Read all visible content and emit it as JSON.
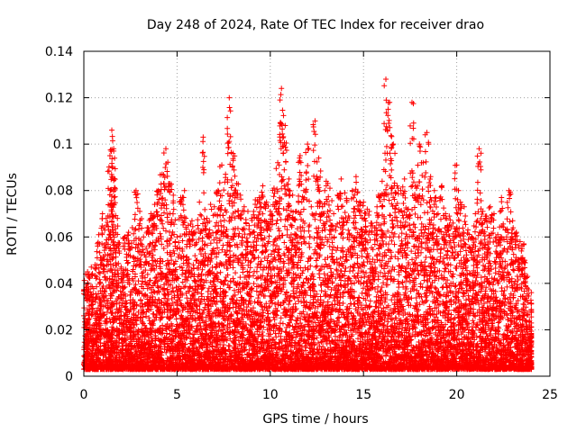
{
  "chart_data": {
    "type": "scatter",
    "title": "Day 248 of 2024, Rate Of TEC Index for receiver drao",
    "xlabel": "GPS time / hours",
    "ylabel": "ROTI / TECUs",
    "xlim": [
      0,
      25
    ],
    "ylim": [
      0,
      0.14
    ],
    "x_ticks": [
      0,
      5,
      10,
      15,
      20,
      25
    ],
    "x_tick_labels": [
      "0",
      "5",
      "10",
      "15",
      "20",
      "25"
    ],
    "y_ticks": [
      0,
      0.02,
      0.04,
      0.06,
      0.08,
      0.1,
      0.12,
      0.14
    ],
    "y_tick_labels": [
      "0",
      "0.02",
      "0.04",
      "0.06",
      "0.08",
      "0.1",
      "0.12",
      "0.14"
    ],
    "grid": true,
    "marker": "plus",
    "marker_color": "#ff0000",
    "series": [
      {
        "name": "ROTI",
        "x": [
          0.1,
          0.2,
          0.4,
          0.6,
          0.8,
          1.0,
          1.2,
          1.4,
          1.5,
          1.6,
          1.8,
          2.0,
          2.2,
          2.4,
          2.6,
          2.8,
          3.0,
          3.2,
          3.4,
          3.6,
          3.8,
          4.0,
          4.2,
          4.4,
          4.6,
          4.8,
          5.0,
          5.2,
          5.4,
          5.6,
          5.8,
          6.0,
          6.2,
          6.4,
          6.6,
          6.8,
          7.0,
          7.2,
          7.4,
          7.6,
          7.8,
          8.0,
          8.2,
          8.4,
          8.6,
          8.8,
          9.0,
          9.2,
          9.4,
          9.6,
          9.8,
          10.0,
          10.2,
          10.4,
          10.6,
          10.8,
          11.0,
          11.2,
          11.4,
          11.6,
          11.8,
          12.0,
          12.2,
          12.4,
          12.6,
          12.8,
          13.0,
          13.2,
          13.4,
          13.6,
          13.8,
          14.0,
          14.2,
          14.4,
          14.6,
          14.8,
          15.0,
          15.2,
          15.4,
          15.6,
          15.8,
          16.0,
          16.2,
          16.4,
          16.6,
          16.8,
          17.0,
          17.2,
          17.4,
          17.6,
          17.8,
          18.0,
          18.2,
          18.4,
          18.6,
          18.8,
          19.0,
          19.2,
          19.4,
          19.6,
          19.8,
          20.0,
          20.2,
          20.4,
          20.6,
          20.8,
          21.0,
          21.2,
          21.4,
          21.6,
          21.8,
          22.0,
          22.2,
          22.4,
          22.6,
          22.8,
          23.0,
          23.2,
          23.4,
          23.6,
          23.8,
          24.0
        ],
        "values": [
          0.044,
          0.045,
          0.047,
          0.048,
          0.061,
          0.07,
          0.068,
          0.095,
          0.106,
          0.098,
          0.068,
          0.047,
          0.06,
          0.062,
          0.064,
          0.08,
          0.071,
          0.06,
          0.064,
          0.07,
          0.074,
          0.08,
          0.087,
          0.098,
          0.083,
          0.078,
          0.06,
          0.077,
          0.08,
          0.065,
          0.067,
          0.062,
          0.075,
          0.103,
          0.068,
          0.074,
          0.073,
          0.08,
          0.091,
          0.087,
          0.12,
          0.096,
          0.083,
          0.078,
          0.073,
          0.071,
          0.068,
          0.076,
          0.077,
          0.082,
          0.075,
          0.071,
          0.081,
          0.092,
          0.124,
          0.108,
          0.085,
          0.078,
          0.071,
          0.095,
          0.08,
          0.1,
          0.073,
          0.11,
          0.094,
          0.073,
          0.084,
          0.081,
          0.07,
          0.078,
          0.085,
          0.079,
          0.069,
          0.08,
          0.086,
          0.075,
          0.075,
          0.072,
          0.066,
          0.064,
          0.078,
          0.084,
          0.128,
          0.118,
          0.1,
          0.082,
          0.08,
          0.085,
          0.072,
          0.118,
          0.082,
          0.1,
          0.092,
          0.105,
          0.086,
          0.08,
          0.07,
          0.082,
          0.07,
          0.069,
          0.066,
          0.091,
          0.075,
          0.073,
          0.063,
          0.06,
          0.07,
          0.098,
          0.071,
          0.069,
          0.073,
          0.07,
          0.061,
          0.077,
          0.063,
          0.08,
          0.067,
          0.062,
          0.058,
          0.057,
          0.043,
          0.036
        ]
      }
    ]
  }
}
